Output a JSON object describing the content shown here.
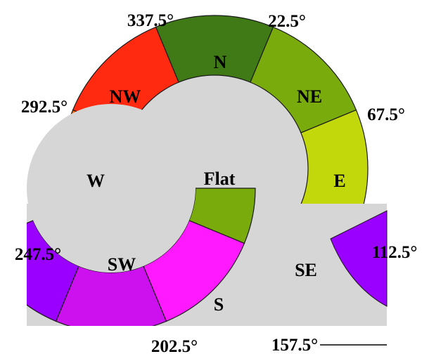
{
  "center_label": "Flat",
  "sectors": [
    {
      "label": "N",
      "color": "#3f7a16"
    },
    {
      "label": "NE",
      "color": "#7aab0c"
    },
    {
      "label": "E",
      "color": "#c3d80a"
    },
    {
      "label": "SE",
      "color": "#d4d4d4"
    },
    {
      "label": "S",
      "color": "#ff19ff"
    },
    {
      "label": "SW",
      "color": "#cc11ee"
    },
    {
      "label": "W",
      "color": "#ff6600"
    },
    {
      "label": "NW",
      "color": "#ff2a10"
    }
  ],
  "boundary_labels": [
    "22.5°",
    "67.5°",
    "112.5°",
    "157.5°",
    "202.5°",
    "247.5°",
    "292.5°",
    "337.5°"
  ],
  "flat_color": "#d6d6d6"
}
